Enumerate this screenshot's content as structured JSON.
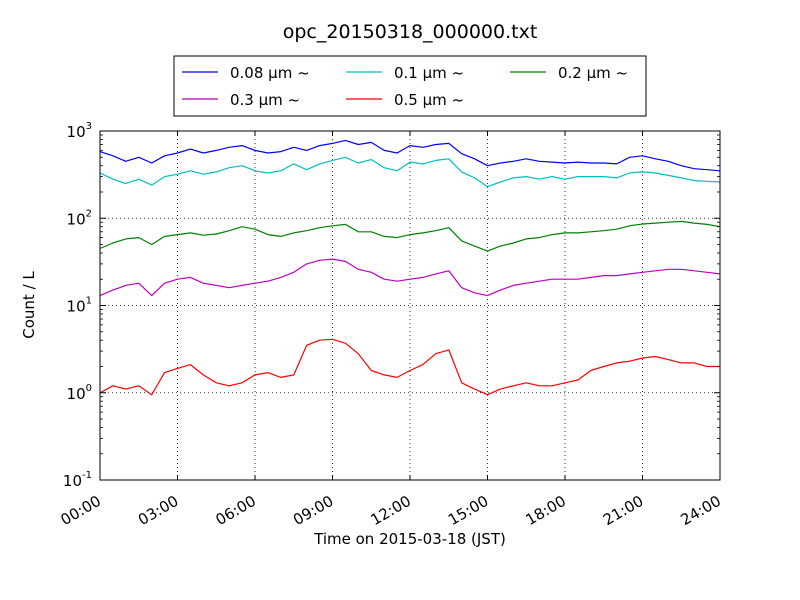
{
  "chart_data": {
    "type": "line",
    "title": "opc_20150318_000000.txt",
    "xlabel": "Time on 2015-03-18 (JST)",
    "ylabel": "Count / L",
    "xlim": [
      0,
      24
    ],
    "ylim": [
      0.1,
      1000
    ],
    "yscale": "log",
    "grid": true,
    "legend_position": "top-outside",
    "x_tick_labels": [
      "00:00",
      "03:00",
      "06:00",
      "09:00",
      "12:00",
      "15:00",
      "18:00",
      "21:00",
      "24:00"
    ],
    "y_tick_labels": [
      {
        "base": "10",
        "exp": "-1"
      },
      {
        "base": "10",
        "exp": "0"
      },
      {
        "base": "10",
        "exp": "1"
      },
      {
        "base": "10",
        "exp": "2"
      },
      {
        "base": "10",
        "exp": "3"
      }
    ],
    "x": [
      0.0,
      0.5,
      1.0,
      1.5,
      2.0,
      2.5,
      3.0,
      3.5,
      4.0,
      4.5,
      5.0,
      5.5,
      6.0,
      6.5,
      7.0,
      7.5,
      8.0,
      8.5,
      9.0,
      9.5,
      10.0,
      10.5,
      11.0,
      11.5,
      12.0,
      12.5,
      13.0,
      13.5,
      14.0,
      14.5,
      15.0,
      15.5,
      16.0,
      16.5,
      17.0,
      17.5,
      18.0,
      18.5,
      19.0,
      19.5,
      20.0,
      20.5,
      21.0,
      21.5,
      22.0,
      22.5,
      23.0,
      23.5,
      24.0
    ],
    "series": [
      {
        "name": "0.08 μm ~",
        "color": "#0000ff",
        "values": [
          580,
          520,
          450,
          500,
          430,
          520,
          560,
          620,
          560,
          600,
          650,
          680,
          600,
          560,
          580,
          650,
          600,
          680,
          720,
          780,
          700,
          740,
          600,
          560,
          680,
          650,
          700,
          720,
          550,
          480,
          400,
          430,
          450,
          480,
          450,
          440,
          430,
          440,
          430,
          430,
          420,
          500,
          520,
          480,
          450,
          400,
          370,
          360,
          350
        ]
      },
      {
        "name": "0.1 μm ~",
        "color": "#00bfbf",
        "values": [
          330,
          280,
          250,
          280,
          240,
          300,
          320,
          350,
          320,
          340,
          380,
          400,
          350,
          330,
          350,
          420,
          360,
          420,
          460,
          500,
          430,
          470,
          380,
          350,
          440,
          420,
          460,
          480,
          340,
          290,
          230,
          260,
          290,
          300,
          280,
          300,
          280,
          300,
          300,
          300,
          290,
          330,
          340,
          330,
          310,
          290,
          270,
          265,
          260
        ]
      },
      {
        "name": "0.2 μm ~",
        "color": "#008000",
        "values": [
          45,
          52,
          58,
          60,
          50,
          62,
          65,
          68,
          64,
          66,
          72,
          80,
          75,
          65,
          62,
          68,
          72,
          78,
          82,
          85,
          70,
          70,
          62,
          60,
          65,
          68,
          72,
          78,
          55,
          48,
          42,
          48,
          52,
          58,
          60,
          65,
          68,
          68,
          70,
          72,
          75,
          82,
          86,
          88,
          90,
          92,
          88,
          85,
          80
        ]
      },
      {
        "name": "0.3 μm ~",
        "color": "#bf00bf",
        "values": [
          13,
          15,
          17,
          18,
          13,
          18,
          20,
          21,
          18,
          17,
          16,
          17,
          18,
          19,
          21,
          24,
          30,
          33,
          34,
          32,
          26,
          24,
          20,
          19,
          20,
          21,
          23,
          25,
          16,
          14,
          13,
          15,
          17,
          18,
          19,
          20,
          20,
          20,
          21,
          22,
          22,
          23,
          24,
          25,
          26,
          26,
          25,
          24,
          23
        ]
      },
      {
        "name": "0.5 μm ~",
        "color": "#ff0000",
        "values": [
          1.0,
          1.2,
          1.1,
          1.2,
          0.95,
          1.7,
          1.9,
          2.1,
          1.6,
          1.3,
          1.2,
          1.3,
          1.6,
          1.7,
          1.5,
          1.6,
          3.5,
          4.0,
          4.1,
          3.7,
          2.8,
          1.8,
          1.6,
          1.5,
          1.8,
          2.1,
          2.8,
          3.1,
          1.3,
          1.1,
          0.95,
          1.1,
          1.2,
          1.3,
          1.2,
          1.2,
          1.3,
          1.4,
          1.8,
          2.0,
          2.2,
          2.3,
          2.5,
          2.6,
          2.4,
          2.2,
          2.2,
          2.0,
          2.0
        ]
      }
    ]
  }
}
